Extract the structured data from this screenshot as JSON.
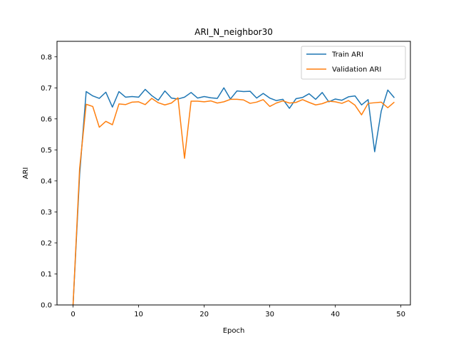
{
  "chart_data": {
    "type": "line",
    "title": "ARI_N_neighbor30",
    "xlabel": "Epoch",
    "ylabel": "ARI",
    "xlim": [
      -2.45,
      51.45
    ],
    "ylim": [
      0.0,
      0.85
    ],
    "xticks": [
      0,
      10,
      20,
      30,
      40,
      50
    ],
    "yticks": [
      0.0,
      0.1,
      0.2,
      0.3,
      0.4,
      0.5,
      0.6,
      0.7,
      0.8
    ],
    "grid": false,
    "legend_position": "top-right",
    "x": [
      0,
      1,
      2,
      3,
      4,
      5,
      6,
      7,
      8,
      9,
      10,
      11,
      12,
      13,
      14,
      15,
      16,
      17,
      18,
      19,
      20,
      21,
      22,
      23,
      24,
      25,
      26,
      27,
      28,
      29,
      30,
      31,
      32,
      33,
      34,
      35,
      36,
      37,
      38,
      39,
      40,
      41,
      42,
      43,
      44,
      45,
      46,
      47,
      48,
      49
    ],
    "series": [
      {
        "name": "Train ARI",
        "color": "#1f77b4",
        "values": [
          0.0,
          0.42,
          0.688,
          0.674,
          0.666,
          0.686,
          0.638,
          0.688,
          0.67,
          0.672,
          0.67,
          0.695,
          0.675,
          0.66,
          0.69,
          0.667,
          0.664,
          0.67,
          0.685,
          0.667,
          0.672,
          0.668,
          0.666,
          0.7,
          0.664,
          0.69,
          0.688,
          0.689,
          0.667,
          0.682,
          0.667,
          0.659,
          0.663,
          0.634,
          0.665,
          0.669,
          0.681,
          0.663,
          0.685,
          0.655,
          0.664,
          0.66,
          0.671,
          0.674,
          0.645,
          0.662,
          0.494,
          0.625,
          0.693,
          0.668
        ]
      },
      {
        "name": "Validation ARI",
        "color": "#ff7f0e",
        "values": [
          0.0,
          0.44,
          0.647,
          0.64,
          0.573,
          0.592,
          0.581,
          0.648,
          0.646,
          0.654,
          0.655,
          0.646,
          0.666,
          0.652,
          0.645,
          0.651,
          0.668,
          0.473,
          0.657,
          0.657,
          0.655,
          0.658,
          0.651,
          0.655,
          0.663,
          0.663,
          0.661,
          0.65,
          0.654,
          0.662,
          0.64,
          0.651,
          0.658,
          0.651,
          0.653,
          0.662,
          0.653,
          0.645,
          0.649,
          0.657,
          0.655,
          0.65,
          0.659,
          0.644,
          0.613,
          0.65,
          0.652,
          0.654,
          0.636,
          0.654
        ]
      }
    ]
  }
}
